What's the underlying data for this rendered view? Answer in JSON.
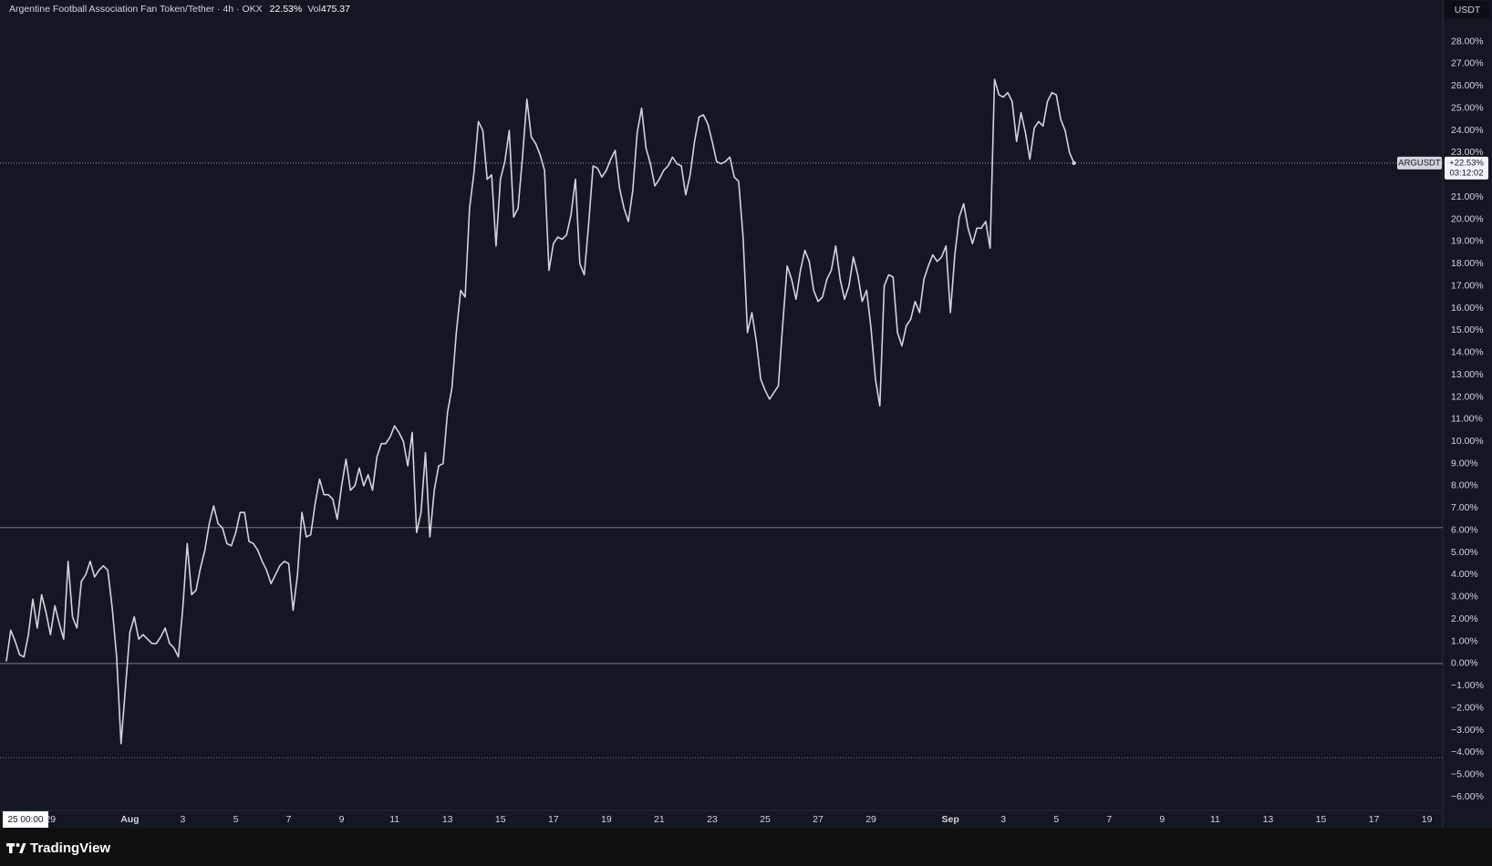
{
  "header": {
    "title": "Argentine Football Association Fan Token/Tether · 4h · OKX",
    "change": "22.53%",
    "vol_label": "Vol",
    "volume": "475.37",
    "currency": "USDT"
  },
  "footer": {
    "brand": "TradingView"
  },
  "cursor_time": "25 00:00",
  "chart_data": {
    "type": "line",
    "color": "#d1d4dc",
    "grid": false,
    "x": [
      "Jul 27 08:00",
      "Jul 27 12:00",
      "Jul 27 16:00",
      "Jul 27 20:00",
      "Jul 28 00:00",
      "Jul 28 04:00",
      "Jul 28 08:00",
      "Jul 28 12:00",
      "Jul 28 16:00",
      "Jul 28 20:00",
      "Jul 29 00:00",
      "Jul 29 04:00",
      "Jul 29 08:00",
      "Jul 29 12:00",
      "Jul 29 16:00",
      "Jul 29 20:00",
      "Jul 30 00:00",
      "Jul 30 04:00",
      "Jul 30 08:00",
      "Jul 30 12:00",
      "Jul 30 16:00",
      "Jul 30 20:00",
      "Jul 31 00:00",
      "Jul 31 04:00",
      "Jul 31 08:00",
      "Jul 31 12:00",
      "Jul 31 16:00",
      "Jul 31 20:00",
      "Aug 1 00:00",
      "Aug 1 04:00",
      "Aug 1 08:00",
      "Aug 1 12:00",
      "Aug 1 16:00",
      "Aug 1 20:00",
      "Aug 2 00:00",
      "Aug 2 04:00",
      "Aug 2 08:00",
      "Aug 2 12:00",
      "Aug 2 16:00",
      "Aug 2 20:00",
      "Aug 3 00:00",
      "Aug 3 04:00",
      "Aug 3 08:00",
      "Aug 3 12:00",
      "Aug 3 16:00",
      "Aug 3 20:00",
      "Aug 4 00:00",
      "Aug 4 04:00",
      "Aug 4 08:00",
      "Aug 4 12:00",
      "Aug 4 16:00",
      "Aug 4 20:00",
      "Aug 5 00:00",
      "Aug 5 04:00",
      "Aug 5 08:00",
      "Aug 5 12:00",
      "Aug 5 16:00",
      "Aug 5 20:00",
      "Aug 6 00:00",
      "Aug 6 04:00",
      "Aug 6 08:00",
      "Aug 6 12:00",
      "Aug 6 16:00",
      "Aug 6 20:00",
      "Aug 7 00:00",
      "Aug 7 04:00",
      "Aug 7 08:00",
      "Aug 7 12:00",
      "Aug 7 16:00",
      "Aug 7 20:00",
      "Aug 8 00:00",
      "Aug 8 04:00",
      "Aug 8 08:00",
      "Aug 8 12:00",
      "Aug 8 16:00",
      "Aug 8 20:00",
      "Aug 9 00:00",
      "Aug 9 04:00",
      "Aug 9 08:00",
      "Aug 9 12:00",
      "Aug 9 16:00",
      "Aug 9 20:00",
      "Aug 10 00:00",
      "Aug 10 04:00",
      "Aug 10 08:00",
      "Aug 10 12:00",
      "Aug 10 16:00",
      "Aug 10 20:00",
      "Aug 11 00:00",
      "Aug 11 04:00",
      "Aug 11 08:00",
      "Aug 11 12:00",
      "Aug 11 16:00",
      "Aug 11 20:00",
      "Aug 12 00:00",
      "Aug 12 04:00",
      "Aug 12 08:00",
      "Aug 12 12:00",
      "Aug 12 16:00",
      "Aug 12 20:00",
      "Aug 13 00:00",
      "Aug 13 04:00",
      "Aug 13 08:00",
      "Aug 13 12:00",
      "Aug 13 16:00",
      "Aug 13 20:00",
      "Aug 14 00:00",
      "Aug 14 04:00",
      "Aug 14 08:00",
      "Aug 14 12:00",
      "Aug 14 16:00",
      "Aug 14 20:00",
      "Aug 15 00:00",
      "Aug 15 04:00",
      "Aug 15 08:00",
      "Aug 15 12:00",
      "Aug 15 16:00",
      "Aug 15 20:00",
      "Aug 16 00:00",
      "Aug 16 04:00",
      "Aug 16 08:00",
      "Aug 16 12:00",
      "Aug 16 16:00",
      "Aug 16 20:00",
      "Aug 17 00:00",
      "Aug 17 04:00",
      "Aug 17 08:00",
      "Aug 17 12:00",
      "Aug 17 16:00",
      "Aug 17 20:00",
      "Aug 18 00:00",
      "Aug 18 04:00",
      "Aug 18 08:00",
      "Aug 18 12:00",
      "Aug 18 16:00",
      "Aug 18 20:00",
      "Aug 19 00:00",
      "Aug 19 04:00",
      "Aug 19 08:00",
      "Aug 19 12:00",
      "Aug 19 16:00",
      "Aug 19 20:00",
      "Aug 20 00:00",
      "Aug 20 04:00",
      "Aug 20 08:00",
      "Aug 20 12:00",
      "Aug 20 16:00",
      "Aug 20 20:00",
      "Aug 21 00:00",
      "Aug 21 04:00",
      "Aug 21 08:00",
      "Aug 21 12:00",
      "Aug 21 16:00",
      "Aug 21 20:00",
      "Aug 22 00:00",
      "Aug 22 04:00",
      "Aug 22 08:00",
      "Aug 22 12:00",
      "Aug 22 16:00",
      "Aug 22 20:00",
      "Aug 23 00:00",
      "Aug 23 04:00",
      "Aug 23 08:00",
      "Aug 23 12:00",
      "Aug 23 16:00",
      "Aug 23 20:00",
      "Aug 24 00:00",
      "Aug 24 04:00",
      "Aug 24 08:00",
      "Aug 24 12:00",
      "Aug 24 16:00",
      "Aug 24 20:00",
      "Aug 25 00:00",
      "Aug 25 04:00",
      "Aug 25 08:00",
      "Aug 25 12:00",
      "Aug 25 16:00",
      "Aug 25 20:00",
      "Aug 26 00:00",
      "Aug 26 04:00",
      "Aug 26 08:00",
      "Aug 26 12:00",
      "Aug 26 16:00",
      "Aug 26 20:00",
      "Aug 27 00:00",
      "Aug 27 04:00",
      "Aug 27 08:00",
      "Aug 27 12:00",
      "Aug 27 16:00",
      "Aug 27 20:00",
      "Aug 28 00:00",
      "Aug 28 04:00",
      "Aug 28 08:00",
      "Aug 28 12:00",
      "Aug 28 16:00",
      "Aug 28 20:00",
      "Aug 29 00:00",
      "Aug 29 04:00",
      "Aug 29 08:00",
      "Aug 29 12:00",
      "Aug 29 16:00",
      "Aug 29 20:00",
      "Aug 30 00:00",
      "Aug 30 04:00",
      "Aug 30 08:00",
      "Aug 30 12:00",
      "Aug 30 16:00",
      "Aug 30 20:00",
      "Aug 31 00:00",
      "Aug 31 04:00",
      "Aug 31 08:00",
      "Aug 31 12:00",
      "Aug 31 16:00",
      "Aug 31 20:00",
      "Sep 1 00:00",
      "Sep 1 04:00",
      "Sep 1 08:00",
      "Sep 1 12:00",
      "Sep 1 16:00",
      "Sep 1 20:00",
      "Sep 2 00:00",
      "Sep 2 04:00",
      "Sep 2 08:00",
      "Sep 2 12:00",
      "Sep 2 16:00",
      "Sep 2 20:00",
      "Sep 3 00:00",
      "Sep 3 04:00",
      "Sep 3 08:00",
      "Sep 3 12:00",
      "Sep 3 16:00",
      "Sep 3 20:00",
      "Sep 4 00:00",
      "Sep 4 04:00",
      "Sep 4 08:00",
      "Sep 4 12:00",
      "Sep 4 16:00",
      "Sep 4 20:00",
      "Sep 5 00:00",
      "Sep 5 04:00",
      "Sep 5 08:00",
      "Sep 5 12:00",
      "Sep 5 16:00"
    ],
    "values": [
      0.1,
      1.5,
      1.0,
      0.4,
      0.3,
      1.3,
      2.9,
      1.6,
      3.1,
      2.3,
      1.3,
      2.6,
      1.8,
      1.1,
      4.6,
      2.1,
      1.6,
      3.7,
      4.0,
      4.6,
      3.9,
      4.2,
      4.4,
      4.2,
      2.5,
      0.3,
      -3.6,
      -1.1,
      1.4,
      2.1,
      1.1,
      1.3,
      1.1,
      0.9,
      0.9,
      1.2,
      1.6,
      0.9,
      0.7,
      0.3,
      2.5,
      5.4,
      3.1,
      3.3,
      4.3,
      5.1,
      6.3,
      7.1,
      6.3,
      6.1,
      5.4,
      5.3,
      5.9,
      6.8,
      6.8,
      5.5,
      5.4,
      5.1,
      4.6,
      4.2,
      3.6,
      4.0,
      4.4,
      4.6,
      4.5,
      2.4,
      4.0,
      6.8,
      5.7,
      5.8,
      7.2,
      8.3,
      7.6,
      7.6,
      7.4,
      6.5,
      8.0,
      9.2,
      7.8,
      8.0,
      8.8,
      8.0,
      8.5,
      7.8,
      9.3,
      9.9,
      9.9,
      10.2,
      10.7,
      10.4,
      10.0,
      8.9,
      10.4,
      5.9,
      6.8,
      9.5,
      5.7,
      7.8,
      8.9,
      9.0,
      11.3,
      12.4,
      14.9,
      16.8,
      16.5,
      20.5,
      22.1,
      24.4,
      24.0,
      21.8,
      22.0,
      18.8,
      21.8,
      22.6,
      24.0,
      20.1,
      20.5,
      22.8,
      25.4,
      23.7,
      23.4,
      22.9,
      22.2,
      17.7,
      18.9,
      19.2,
      19.1,
      19.3,
      20.2,
      21.8,
      18.0,
      17.5,
      19.8,
      22.4,
      22.3,
      21.9,
      22.2,
      22.7,
      23.1,
      21.4,
      20.5,
      19.9,
      21.3,
      23.9,
      25.0,
      23.2,
      22.5,
      21.5,
      21.8,
      22.2,
      22.4,
      22.8,
      22.5,
      22.4,
      21.1,
      22.0,
      23.5,
      24.6,
      24.7,
      24.3,
      23.5,
      22.6,
      22.5,
      22.6,
      22.8,
      21.9,
      21.7,
      19.2,
      14.9,
      15.8,
      14.5,
      12.8,
      12.3,
      11.9,
      12.2,
      12.5,
      15.3,
      17.9,
      17.3,
      16.4,
      17.7,
      18.6,
      18.1,
      16.8,
      16.3,
      16.5,
      17.3,
      17.7,
      18.8,
      17.3,
      16.4,
      17.0,
      18.3,
      17.5,
      16.3,
      16.8,
      15.1,
      12.8,
      11.6,
      17.0,
      17.5,
      17.4,
      14.9,
      14.3,
      15.2,
      15.5,
      16.3,
      15.8,
      17.3,
      17.9,
      18.4,
      18.1,
      18.3,
      18.8,
      15.8,
      18.4,
      20.1,
      20.7,
      19.6,
      18.9,
      19.6,
      19.6,
      19.9,
      18.7,
      26.3,
      25.6,
      25.5,
      25.7,
      25.3,
      23.5,
      24.8,
      23.9,
      22.7,
      24.1,
      24.4,
      24.2,
      25.3,
      25.7,
      25.6,
      24.5,
      24.0,
      23.0,
      22.53
    ],
    "xlim": [
      "Jul 27 02:15",
      "Sep 19 14:24"
    ],
    "xticks": [
      {
        "value": "Jul 29 00:00",
        "label": "29"
      },
      {
        "value": "Aug 1 00:00",
        "label": "Aug"
      },
      {
        "value": "Aug 3 00:00",
        "label": "3"
      },
      {
        "value": "Aug 5 00:00",
        "label": "5"
      },
      {
        "value": "Aug 7 00:00",
        "label": "7"
      },
      {
        "value": "Aug 9 00:00",
        "label": "9"
      },
      {
        "value": "Aug 11 00:00",
        "label": "11"
      },
      {
        "value": "Aug 13 00:00",
        "label": "13"
      },
      {
        "value": "Aug 15 00:00",
        "label": "15"
      },
      {
        "value": "Aug 17 00:00",
        "label": "17"
      },
      {
        "value": "Aug 19 00:00",
        "label": "19"
      },
      {
        "value": "Aug 21 00:00",
        "label": "21"
      },
      {
        "value": "Aug 23 00:00",
        "label": "23"
      },
      {
        "value": "Aug 25 00:00",
        "label": "25"
      },
      {
        "value": "Aug 27 00:00",
        "label": "27"
      },
      {
        "value": "Aug 29 00:00",
        "label": "29"
      },
      {
        "value": "Sep 1 00:00",
        "label": "Sep"
      },
      {
        "value": "Sep 3 00:00",
        "label": "3"
      },
      {
        "value": "Sep 5 00:00",
        "label": "5"
      },
      {
        "value": "Sep 7 00:00",
        "label": "7"
      },
      {
        "value": "Sep 9 00:00",
        "label": "9"
      },
      {
        "value": "Sep 11 00:00",
        "label": "11"
      },
      {
        "value": "Sep 13 00:00",
        "label": "13"
      },
      {
        "value": "Sep 15 00:00",
        "label": "15"
      },
      {
        "value": "Sep 17 00:00",
        "label": "17"
      },
      {
        "value": "Sep 19 00:00",
        "label": "19"
      }
    ],
    "ylim": [
      -6.61,
      29.87
    ],
    "yticks": [
      {
        "value": -6,
        "label": "−6.00%"
      },
      {
        "value": -5,
        "label": "−5.00%"
      },
      {
        "value": -4,
        "label": "−4.00%"
      },
      {
        "value": -3,
        "label": "−3.00%"
      },
      {
        "value": -2,
        "label": "−2.00%"
      },
      {
        "value": -1,
        "label": "−1.00%"
      },
      {
        "value": 0,
        "label": "0.00%"
      },
      {
        "value": 1,
        "label": "1.00%"
      },
      {
        "value": 2,
        "label": "2.00%"
      },
      {
        "value": 3,
        "label": "3.00%"
      },
      {
        "value": 4,
        "label": "4.00%"
      },
      {
        "value": 5,
        "label": "5.00%"
      },
      {
        "value": 6,
        "label": "6.00%"
      },
      {
        "value": 7,
        "label": "7.00%"
      },
      {
        "value": 8,
        "label": "8.00%"
      },
      {
        "value": 9,
        "label": "9.00%"
      },
      {
        "value": 10,
        "label": "10.00%"
      },
      {
        "value": 11,
        "label": "11.00%"
      },
      {
        "value": 12,
        "label": "12.00%"
      },
      {
        "value": 13,
        "label": "13.00%"
      },
      {
        "value": 14,
        "label": "14.00%"
      },
      {
        "value": 15,
        "label": "15.00%"
      },
      {
        "value": 16,
        "label": "16.00%"
      },
      {
        "value": 17,
        "label": "17.00%"
      },
      {
        "value": 18,
        "label": "18.00%"
      },
      {
        "value": 19,
        "label": "19.00%"
      },
      {
        "value": 20,
        "label": "20.00%"
      },
      {
        "value": 21,
        "label": "21.00%"
      },
      {
        "value": 22,
        "label": "22.00%"
      },
      {
        "value": 23,
        "label": "23.00%"
      },
      {
        "value": 24,
        "label": "24.00%"
      },
      {
        "value": 25,
        "label": "25.00%"
      },
      {
        "value": 26,
        "label": "26.00%"
      },
      {
        "value": 27,
        "label": "27.00%"
      },
      {
        "value": 28,
        "label": "28.00%"
      }
    ],
    "hlines": [
      {
        "value": 6.12,
        "style": "solid"
      },
      {
        "value": 0,
        "style": "solid"
      },
      {
        "value": -4.24,
        "style": "dotted"
      }
    ],
    "price_line": {
      "symbol": "ARGUSDT",
      "value": 22.53,
      "label": "+22.53%",
      "countdown": "03:12:02"
    }
  }
}
